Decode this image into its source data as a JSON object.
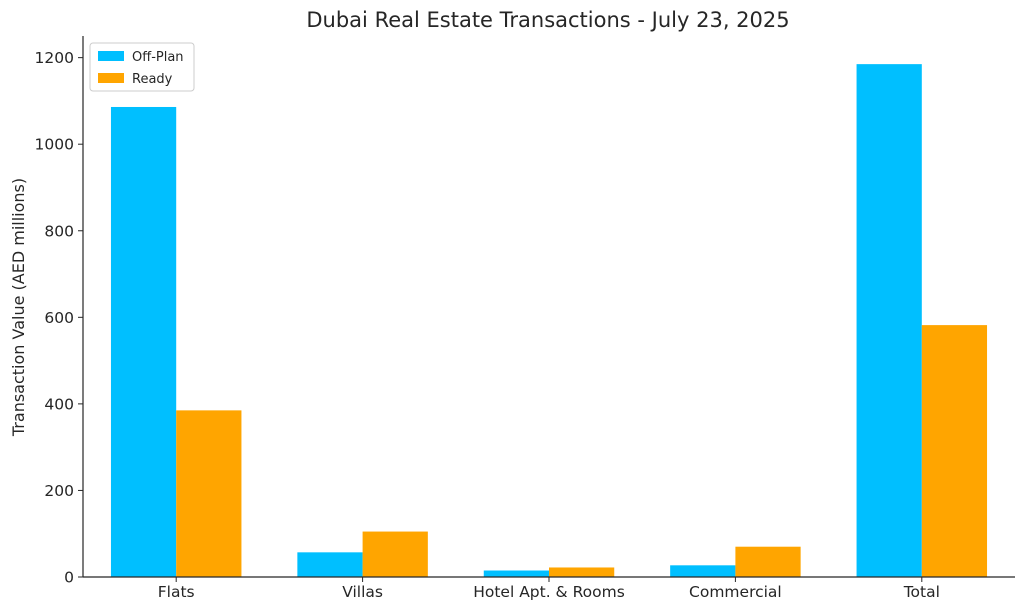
{
  "chart_data": {
    "type": "bar",
    "title": "Dubai Real Estate Transactions - July 23, 2025",
    "xlabel": "",
    "ylabel": "Transaction Value (AED millions)",
    "categories": [
      "Flats",
      "Villas",
      "Hotel Apt. & Rooms",
      "Commercial",
      "Total"
    ],
    "series": [
      {
        "name": "Off-Plan",
        "color": "#00bfff",
        "values": [
          1086,
          57,
          15,
          27,
          1185
        ]
      },
      {
        "name": "Ready",
        "color": "#ffa500",
        "values": [
          385,
          105,
          22,
          70,
          582
        ]
      }
    ],
    "ylim": [
      0,
      1250
    ],
    "yticks": [
      0,
      200,
      400,
      600,
      800,
      1000,
      1200
    ],
    "grid": false,
    "legend_position": "top-left"
  }
}
